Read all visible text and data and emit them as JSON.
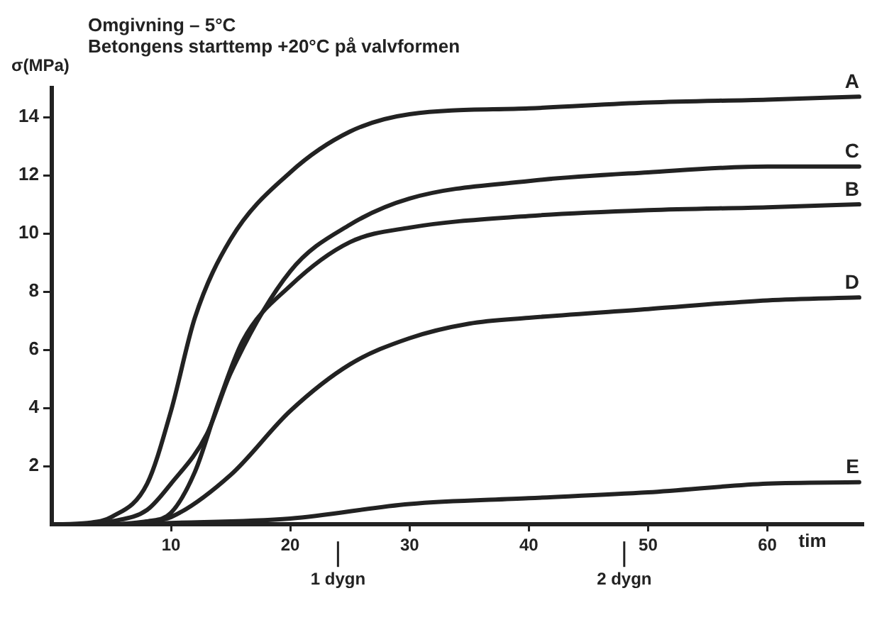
{
  "chart_data": {
    "type": "line",
    "title": "Omgivning – 5°C",
    "subtitle": "Betongens starttemp +20°C på valvformen",
    "ylabel": "σ(MPa)",
    "xlabel": "tim",
    "xlim": [
      0,
      68
    ],
    "ylim": [
      0,
      15
    ],
    "xticks": [
      10,
      20,
      30,
      40,
      50,
      60
    ],
    "yticks": [
      2,
      4,
      6,
      8,
      10,
      12,
      14
    ],
    "grid": false,
    "legend": false,
    "ref_lines": [
      {
        "axis": "x",
        "value": 24,
        "label": "1 dygn"
      },
      {
        "axis": "x",
        "value": 48,
        "label": "2 dygn"
      }
    ],
    "series": [
      {
        "name": "A",
        "color": "#222222",
        "x": [
          0,
          3,
          5,
          8,
          10,
          12,
          15,
          20,
          25,
          30,
          40,
          50,
          60,
          67.7
        ],
        "values": [
          0,
          0.05,
          0.25,
          1.4,
          3.9,
          7.1,
          9.8,
          12.1,
          13.5,
          14.1,
          14.3,
          14.5,
          14.6,
          14.7
        ]
      },
      {
        "name": "C",
        "color": "#222222",
        "x": [
          0,
          3,
          5,
          8,
          10,
          13,
          15,
          20,
          25,
          30,
          40,
          50,
          60,
          67.7
        ],
        "values": [
          0,
          0,
          0.1,
          0.5,
          1.4,
          3.1,
          5.2,
          8.7,
          10.3,
          11.2,
          11.8,
          12.1,
          12.3,
          12.3
        ]
      },
      {
        "name": "B",
        "color": "#222222",
        "x": [
          0,
          5,
          8,
          10,
          12,
          14,
          16,
          20,
          25,
          30,
          40,
          50,
          60,
          67.7
        ],
        "values": [
          0,
          0,
          0.1,
          0.4,
          1.8,
          4.2,
          6.3,
          8.2,
          9.7,
          10.2,
          10.6,
          10.8,
          10.9,
          11.0
        ]
      },
      {
        "name": "D",
        "color": "#222222",
        "x": [
          0,
          5,
          8,
          10,
          15,
          20,
          25,
          30,
          35,
          40,
          50,
          60,
          67.7
        ],
        "values": [
          0,
          0,
          0.1,
          0.25,
          1.7,
          3.9,
          5.5,
          6.4,
          6.9,
          7.1,
          7.4,
          7.7,
          7.8
        ]
      },
      {
        "name": "E",
        "color": "#222222",
        "x": [
          0,
          5,
          10,
          20,
          30,
          40,
          50,
          60,
          67.7
        ],
        "values": [
          0,
          0,
          0.05,
          0.2,
          0.7,
          0.9,
          1.1,
          1.4,
          1.45
        ]
      }
    ]
  }
}
